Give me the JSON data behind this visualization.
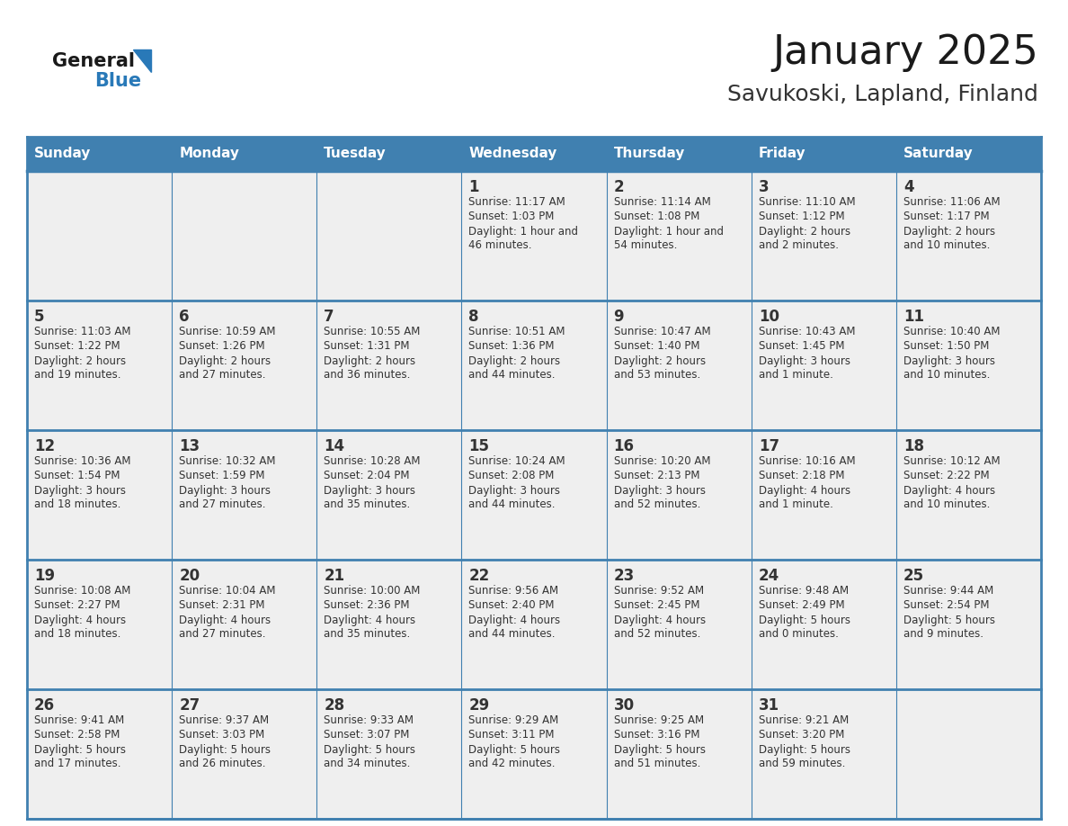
{
  "title": "January 2025",
  "subtitle": "Savukoski, Lapland, Finland",
  "days_of_week": [
    "Sunday",
    "Monday",
    "Tuesday",
    "Wednesday",
    "Thursday",
    "Friday",
    "Saturday"
  ],
  "header_bg": "#4080B0",
  "header_text": "#FFFFFF",
  "cell_bg": "#EFEFEF",
  "cell_text": "#333333",
  "border_color": "#4080B0",
  "title_color": "#1a1a1a",
  "subtitle_color": "#333333",
  "logo_general_color": "#1a1a1a",
  "logo_blue_color": "#2979B8",
  "calendar": [
    [
      null,
      null,
      null,
      {
        "day": "1",
        "sunrise": "11:17 AM",
        "sunset": "1:03 PM",
        "daylight": "1 hour and",
        "daylight2": "46 minutes."
      },
      {
        "day": "2",
        "sunrise": "11:14 AM",
        "sunset": "1:08 PM",
        "daylight": "1 hour and",
        "daylight2": "54 minutes."
      },
      {
        "day": "3",
        "sunrise": "11:10 AM",
        "sunset": "1:12 PM",
        "daylight": "2 hours",
        "daylight2": "and 2 minutes."
      },
      {
        "day": "4",
        "sunrise": "11:06 AM",
        "sunset": "1:17 PM",
        "daylight": "2 hours",
        "daylight2": "and 10 minutes."
      }
    ],
    [
      {
        "day": "5",
        "sunrise": "11:03 AM",
        "sunset": "1:22 PM",
        "daylight": "2 hours",
        "daylight2": "and 19 minutes."
      },
      {
        "day": "6",
        "sunrise": "10:59 AM",
        "sunset": "1:26 PM",
        "daylight": "2 hours",
        "daylight2": "and 27 minutes."
      },
      {
        "day": "7",
        "sunrise": "10:55 AM",
        "sunset": "1:31 PM",
        "daylight": "2 hours",
        "daylight2": "and 36 minutes."
      },
      {
        "day": "8",
        "sunrise": "10:51 AM",
        "sunset": "1:36 PM",
        "daylight": "2 hours",
        "daylight2": "and 44 minutes."
      },
      {
        "day": "9",
        "sunrise": "10:47 AM",
        "sunset": "1:40 PM",
        "daylight": "2 hours",
        "daylight2": "and 53 minutes."
      },
      {
        "day": "10",
        "sunrise": "10:43 AM",
        "sunset": "1:45 PM",
        "daylight": "3 hours",
        "daylight2": "and 1 minute."
      },
      {
        "day": "11",
        "sunrise": "10:40 AM",
        "sunset": "1:50 PM",
        "daylight": "3 hours",
        "daylight2": "and 10 minutes."
      }
    ],
    [
      {
        "day": "12",
        "sunrise": "10:36 AM",
        "sunset": "1:54 PM",
        "daylight": "3 hours",
        "daylight2": "and 18 minutes."
      },
      {
        "day": "13",
        "sunrise": "10:32 AM",
        "sunset": "1:59 PM",
        "daylight": "3 hours",
        "daylight2": "and 27 minutes."
      },
      {
        "day": "14",
        "sunrise": "10:28 AM",
        "sunset": "2:04 PM",
        "daylight": "3 hours",
        "daylight2": "and 35 minutes."
      },
      {
        "day": "15",
        "sunrise": "10:24 AM",
        "sunset": "2:08 PM",
        "daylight": "3 hours",
        "daylight2": "and 44 minutes."
      },
      {
        "day": "16",
        "sunrise": "10:20 AM",
        "sunset": "2:13 PM",
        "daylight": "3 hours",
        "daylight2": "and 52 minutes."
      },
      {
        "day": "17",
        "sunrise": "10:16 AM",
        "sunset": "2:18 PM",
        "daylight": "4 hours",
        "daylight2": "and 1 minute."
      },
      {
        "day": "18",
        "sunrise": "10:12 AM",
        "sunset": "2:22 PM",
        "daylight": "4 hours",
        "daylight2": "and 10 minutes."
      }
    ],
    [
      {
        "day": "19",
        "sunrise": "10:08 AM",
        "sunset": "2:27 PM",
        "daylight": "4 hours",
        "daylight2": "and 18 minutes."
      },
      {
        "day": "20",
        "sunrise": "10:04 AM",
        "sunset": "2:31 PM",
        "daylight": "4 hours",
        "daylight2": "and 27 minutes."
      },
      {
        "day": "21",
        "sunrise": "10:00 AM",
        "sunset": "2:36 PM",
        "daylight": "4 hours",
        "daylight2": "and 35 minutes."
      },
      {
        "day": "22",
        "sunrise": "9:56 AM",
        "sunset": "2:40 PM",
        "daylight": "4 hours",
        "daylight2": "and 44 minutes."
      },
      {
        "day": "23",
        "sunrise": "9:52 AM",
        "sunset": "2:45 PM",
        "daylight": "4 hours",
        "daylight2": "and 52 minutes."
      },
      {
        "day": "24",
        "sunrise": "9:48 AM",
        "sunset": "2:49 PM",
        "daylight": "5 hours",
        "daylight2": "and 0 minutes."
      },
      {
        "day": "25",
        "sunrise": "9:44 AM",
        "sunset": "2:54 PM",
        "daylight": "5 hours",
        "daylight2": "and 9 minutes."
      }
    ],
    [
      {
        "day": "26",
        "sunrise": "9:41 AM",
        "sunset": "2:58 PM",
        "daylight": "5 hours",
        "daylight2": "and 17 minutes."
      },
      {
        "day": "27",
        "sunrise": "9:37 AM",
        "sunset": "3:03 PM",
        "daylight": "5 hours",
        "daylight2": "and 26 minutes."
      },
      {
        "day": "28",
        "sunrise": "9:33 AM",
        "sunset": "3:07 PM",
        "daylight": "5 hours",
        "daylight2": "and 34 minutes."
      },
      {
        "day": "29",
        "sunrise": "9:29 AM",
        "sunset": "3:11 PM",
        "daylight": "5 hours",
        "daylight2": "and 42 minutes."
      },
      {
        "day": "30",
        "sunrise": "9:25 AM",
        "sunset": "3:16 PM",
        "daylight": "5 hours",
        "daylight2": "and 51 minutes."
      },
      {
        "day": "31",
        "sunrise": "9:21 AM",
        "sunset": "3:20 PM",
        "daylight": "5 hours",
        "daylight2": "and 59 minutes."
      },
      null
    ]
  ]
}
